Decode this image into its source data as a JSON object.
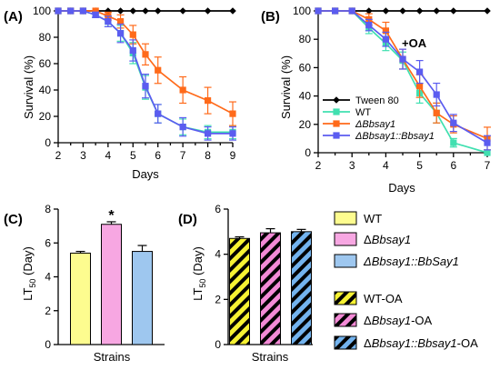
{
  "chart_data": [
    {
      "panel_label": "(A)",
      "type": "line",
      "xlabel": "Days",
      "ylabel": "Survival (%)",
      "xlim": [
        2,
        9
      ],
      "ylim": [
        0,
        100
      ],
      "x_ticks": [
        "2",
        "3",
        "4",
        "5",
        "6",
        "7",
        "8",
        "9"
      ],
      "y_ticks": [
        "0",
        "20",
        "40",
        "60",
        "80",
        "100"
      ],
      "series": [
        {
          "name": "Tween 80",
          "color": "#000000",
          "marker": "diamond",
          "x": [
            2,
            2.5,
            3,
            3.5,
            4,
            4.5,
            5,
            5.5,
            6,
            7,
            8,
            9
          ],
          "y": [
            100,
            100,
            100,
            100,
            100,
            100,
            100,
            100,
            100,
            100,
            100,
            100
          ],
          "err": [
            0,
            0,
            0,
            0,
            0,
            0,
            0,
            0,
            0,
            0,
            0,
            0
          ]
        },
        {
          "name": "WT",
          "color": "#40e0b0",
          "marker": "square",
          "x": [
            2,
            2.5,
            3,
            3.5,
            4,
            4.5,
            5,
            5.5,
            6,
            7,
            8,
            9
          ],
          "y": [
            100,
            100,
            100,
            97,
            92,
            83,
            68,
            42,
            22,
            12,
            8,
            8
          ],
          "err": [
            0,
            0,
            0,
            2,
            4,
            6,
            8,
            9,
            7,
            6,
            5,
            5
          ]
        },
        {
          "name": "ΔBbsay1",
          "color": "#ff6a1a",
          "marker": "square",
          "x": [
            2,
            2.5,
            3,
            3.5,
            4,
            4.5,
            5,
            5.5,
            6,
            7,
            8,
            9
          ],
          "y": [
            100,
            100,
            100,
            100,
            96,
            92,
            82,
            67,
            55,
            40,
            32,
            22
          ],
          "err": [
            0,
            0,
            0,
            0,
            3,
            5,
            7,
            8,
            10,
            10,
            10,
            9
          ]
        },
        {
          "name": "ΔBbsay1::Bbsay1",
          "color": "#5b5cf0",
          "marker": "square",
          "x": [
            2,
            2.5,
            3,
            3.5,
            4,
            4.5,
            5,
            5.5,
            6,
            7,
            8,
            9
          ],
          "y": [
            100,
            100,
            100,
            97,
            92,
            83,
            70,
            43,
            22,
            12,
            7,
            7
          ],
          "err": [
            0,
            0,
            0,
            2,
            4,
            7,
            8,
            9,
            7,
            7,
            5,
            5
          ]
        }
      ]
    },
    {
      "panel_label": "(B)",
      "type": "line",
      "annotation": "+OA",
      "xlabel": "Days",
      "ylabel": "Survival (%)",
      "xlim": [
        2,
        7
      ],
      "ylim": [
        0,
        100
      ],
      "x_ticks": [
        "2",
        "3",
        "4",
        "5",
        "6",
        "7"
      ],
      "y_ticks": [
        "0",
        "20",
        "40",
        "60",
        "80",
        "100"
      ],
      "series": [
        {
          "name": "Tween 80",
          "color": "#000000",
          "marker": "diamond",
          "x": [
            2,
            2.5,
            3,
            3.5,
            4,
            4.5,
            5,
            5.5,
            6,
            7
          ],
          "y": [
            100,
            100,
            100,
            100,
            100,
            100,
            100,
            100,
            100,
            100
          ],
          "err": [
            0,
            0,
            0,
            0,
            0,
            0,
            0,
            0,
            0,
            0
          ]
        },
        {
          "name": "WT",
          "color": "#40e0b0",
          "marker": "square",
          "x": [
            2,
            2.5,
            3,
            3.5,
            4,
            4.5,
            5,
            5.5,
            6,
            7
          ],
          "y": [
            100,
            100,
            100,
            88,
            77,
            65,
            42,
            28,
            7,
            0
          ],
          "err": [
            0,
            0,
            0,
            4,
            5,
            6,
            7,
            7,
            3,
            0
          ]
        },
        {
          "name": "ΔBbsay1",
          "color": "#ff6a1a",
          "marker": "square",
          "x": [
            2,
            2.5,
            3,
            3.5,
            4,
            4.5,
            5,
            5.5,
            6,
            7
          ],
          "y": [
            100,
            100,
            100,
            94,
            86,
            66,
            47,
            28,
            20,
            10
          ],
          "err": [
            0,
            0,
            0,
            4,
            6,
            7,
            8,
            7,
            6,
            8
          ]
        },
        {
          "name": "ΔBbsay1::Bbsay1",
          "color": "#5b5cf0",
          "marker": "square",
          "x": [
            2,
            2.5,
            3,
            3.5,
            4,
            4.5,
            5,
            5.5,
            6,
            7
          ],
          "y": [
            100,
            100,
            100,
            90,
            80,
            66,
            57,
            41,
            21,
            7
          ],
          "err": [
            0,
            0,
            0,
            4,
            5,
            7,
            8,
            8,
            6,
            5
          ]
        }
      ]
    },
    {
      "panel_label": "(C)",
      "type": "bar",
      "xlabel": "Strains",
      "ylabel_main": "LT",
      "ylabel_sub": "50",
      "ylabel_tail": " (Day)",
      "ylim": [
        0,
        8
      ],
      "y_ticks": [
        "0",
        "2",
        "4",
        "6",
        "8"
      ],
      "categories": [
        "WT",
        "ΔBbsay1",
        "ΔBbsay1::BbSay1"
      ],
      "values": [
        5.4,
        7.1,
        5.5
      ],
      "err": [
        0.1,
        0.15,
        0.35
      ],
      "colors": [
        "#fdfc8f",
        "#f7a7e2",
        "#9ec7ef"
      ],
      "significance": {
        "index": 1,
        "label": "*"
      }
    },
    {
      "panel_label": "(D)",
      "type": "bar",
      "xlabel": "Strains",
      "ylabel_main": "LT",
      "ylabel_sub": "50",
      "ylabel_tail": " (Day)",
      "ylim": [
        0,
        6
      ],
      "y_ticks": [
        "0",
        "2",
        "4",
        "6"
      ],
      "categories": [
        "WT-OA",
        "ΔBbsay1-OA",
        "ΔBbsay1::Bbsay1-OA"
      ],
      "values": [
        4.7,
        4.95,
        5.0
      ],
      "err": [
        0.07,
        0.18,
        0.1
      ],
      "colors": [
        "#f6f233",
        "#f38ad6",
        "#73b3ee"
      ],
      "hatched": true
    }
  ],
  "legend_bars": {
    "plain": [
      {
        "color": "#fdfc8f",
        "pre": "WT",
        "ital": "",
        "post": ""
      },
      {
        "color": "#f7a7e2",
        "pre": "Δ",
        "ital": "Bbsay1",
        "post": ""
      },
      {
        "color": "#9ec7ef",
        "pre": "",
        "ital": "ΔBbsay1::BbSay1",
        "post": ""
      }
    ],
    "hatched": [
      {
        "color": "#f6f233",
        "pre": "WT-OA",
        "ital": "",
        "post": ""
      },
      {
        "color": "#f38ad6",
        "pre": "Δ",
        "ital": "Bbsay1",
        "post": "-OA"
      },
      {
        "color": "#73b3ee",
        "pre": "Δ",
        "ital": "Bbsay1::Bbsay1",
        "post": "-OA"
      }
    ]
  }
}
